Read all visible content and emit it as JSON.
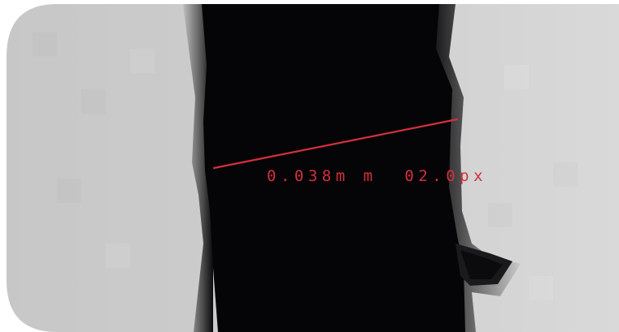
{
  "viewer": {
    "measurement": {
      "label": "0.038m m  02.0px"
    },
    "colors": {
      "measure_line": "#d3303c",
      "measure_text": "#d3303c",
      "background_gray": "#c9c9c9",
      "object_black": "#050508"
    }
  }
}
